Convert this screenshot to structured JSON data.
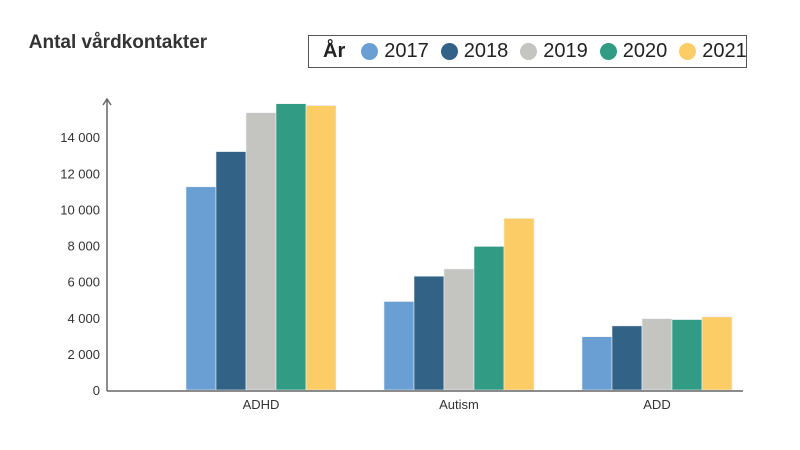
{
  "chart_data": {
    "type": "bar",
    "ylabel": "Antal vårdkontakter",
    "xlabel": "",
    "categories": [
      "ADHD",
      "Autism",
      "ADD"
    ],
    "legend_title": "År",
    "legend_placement": "top-right",
    "series": [
      {
        "name": "2017",
        "color": "#6a9fd4",
        "values": [
          11250,
          4900,
          2950
        ]
      },
      {
        "name": "2018",
        "color": "#326286",
        "values": [
          13200,
          6300,
          3550
        ]
      },
      {
        "name": "2019",
        "color": "#c4c5c1",
        "values": [
          15350,
          6700,
          3950
        ]
      },
      {
        "name": "2020",
        "color": "#319b83",
        "values": [
          15850,
          7950,
          3900
        ]
      },
      {
        "name": "2021",
        "color": "#fccd66",
        "values": [
          15750,
          9500,
          4050
        ]
      }
    ],
    "ylim": [
      0,
      16000
    ],
    "yticks": [
      0,
      2000,
      4000,
      6000,
      8000,
      10000,
      12000,
      14000
    ],
    "ytick_labels": [
      "0",
      "2 000",
      "4 000",
      "6 000",
      "8 000",
      "10 000",
      "12 000",
      "14 000"
    ],
    "grid": false
  }
}
